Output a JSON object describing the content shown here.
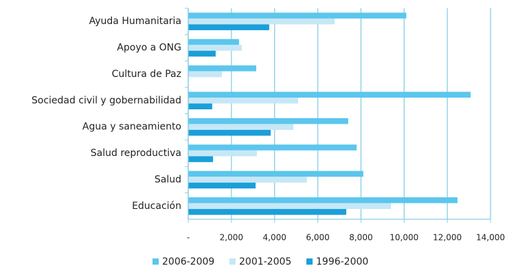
{
  "chart_data": {
    "type": "barh",
    "categories": [
      "Ayuda Humanitaria",
      "Apoyo a ONG",
      "Cultura de Paz",
      "Sociedad civil y gobernabilidad",
      "Agua y saneamiento",
      "Salud reproductiva",
      "Salud",
      "Educación"
    ],
    "series": [
      {
        "name": "2006-2009",
        "color": "#5cc6ec",
        "values": [
          10100,
          2350,
          3150,
          13080,
          7410,
          7800,
          8110,
          12470
        ]
      },
      {
        "name": "2001-2005",
        "color": "#c6e7f6",
        "values": [
          6780,
          2480,
          1560,
          5090,
          4870,
          3180,
          5500,
          9390
        ]
      },
      {
        "name": "1996-2000",
        "color": "#1a9fd9",
        "values": [
          3750,
          1270,
          null,
          1110,
          3820,
          1150,
          3120,
          7320
        ]
      }
    ],
    "xlim": [
      0,
      14000
    ],
    "xticks": [
      {
        "value": 0,
        "label": "-"
      },
      {
        "value": 2000,
        "label": "2,000"
      },
      {
        "value": 4000,
        "label": "4,000"
      },
      {
        "value": 6000,
        "label": "6,000"
      },
      {
        "value": 8000,
        "label": "8,000"
      },
      {
        "value": 10000,
        "label": "10,000"
      },
      {
        "value": 12000,
        "label": "12,000"
      },
      {
        "value": 14000,
        "label": "14,000"
      }
    ],
    "grid": true,
    "legend": "bottom"
  }
}
